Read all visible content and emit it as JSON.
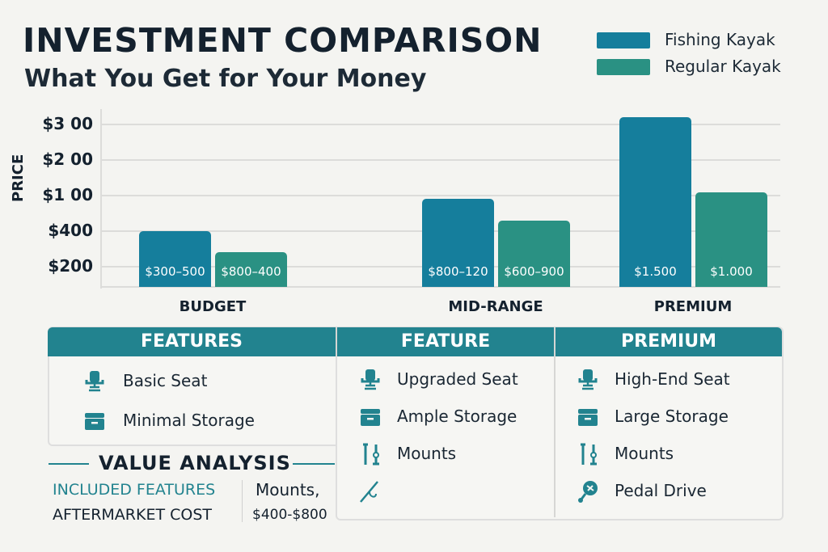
{
  "header": {
    "title": "INVESTMENT COMPARISON",
    "subtitle": "What You Get for Your Money"
  },
  "colors": {
    "fishing": "#157e9c",
    "regular": "#2a9183",
    "header": "#22838f",
    "text": "#14212e",
    "background": "#f4f4f1"
  },
  "chart_data": {
    "type": "bar",
    "ylabel": "PRICE",
    "categories": [
      "BUDGET",
      "MID-RANGE",
      "PREMIUM"
    ],
    "y_ticks": [
      {
        "level": 1,
        "label": "$200"
      },
      {
        "level": 2,
        "label": "$400"
      },
      {
        "level": 3,
        "label": "$1 00"
      },
      {
        "level": 4,
        "label": "$2 00"
      },
      {
        "level": 5,
        "label": "$3 00"
      }
    ],
    "ylim": [
      0.43,
      5.5
    ],
    "grid": true,
    "legend_position": "top-right",
    "series": [
      {
        "name": "Fishing Kayak",
        "values": [
          2.0,
          2.9,
          5.2
        ],
        "labels": [
          "$300–500",
          "$800–120",
          "$1.500"
        ]
      },
      {
        "name": "Regular Kayak",
        "values": [
          1.4,
          2.3,
          3.1
        ],
        "labels": [
          "$800–400",
          "$600–900",
          "$1.000"
        ]
      }
    ]
  },
  "table": {
    "columns": [
      {
        "header": "FEATURES",
        "items": [
          {
            "icon": "seat-icon",
            "label": "Basic Seat"
          },
          {
            "icon": "storage-icon",
            "label": "Minimal Storage"
          }
        ]
      },
      {
        "header": "FEATURE",
        "items": [
          {
            "icon": "seat-icon",
            "label": "Upgraded Seat"
          },
          {
            "icon": "storage-icon",
            "label": "Ample Storage"
          },
          {
            "icon": "mounts-icon",
            "label": "Mounts"
          },
          {
            "icon": "fishing-rod-icon",
            "label": ""
          }
        ]
      },
      {
        "header": "PREMIUM",
        "items": [
          {
            "icon": "seat-icon",
            "label": "High-End Seat"
          },
          {
            "icon": "storage-icon",
            "label": "Large Storage"
          },
          {
            "icon": "mounts-icon",
            "label": "Mounts"
          },
          {
            "icon": "pedal-drive-icon",
            "label": "Pedal Drive"
          }
        ]
      }
    ]
  },
  "value_analysis": {
    "title": "VALUE ANALYSIS",
    "included": "INCLUDED FEATURES",
    "aftermarket": "AFTERMARKET COST",
    "value_line1": "Mounts,",
    "value_line2": "$400-$800"
  }
}
